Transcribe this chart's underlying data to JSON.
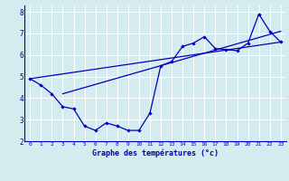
{
  "xlabel": "Graphe des températures (°c)",
  "bg_color": "#d4ecf0",
  "line_color": "#0000bb",
  "grid_color": "#ffffff",
  "xlim": [
    -0.5,
    23.5
  ],
  "ylim": [
    2,
    8.3
  ],
  "xticks": [
    0,
    1,
    2,
    3,
    4,
    5,
    6,
    7,
    8,
    9,
    10,
    11,
    12,
    13,
    14,
    15,
    16,
    17,
    18,
    19,
    20,
    21,
    22,
    23
  ],
  "yticks": [
    2,
    3,
    4,
    5,
    6,
    7,
    8
  ],
  "temp_line": [
    [
      0,
      4.9
    ],
    [
      1,
      4.6
    ],
    [
      2,
      4.2
    ],
    [
      3,
      3.6
    ],
    [
      4,
      3.5
    ],
    [
      5,
      2.7
    ],
    [
      6,
      2.5
    ],
    [
      7,
      2.85
    ],
    [
      8,
      2.7
    ],
    [
      9,
      2.5
    ],
    [
      10,
      2.5
    ],
    [
      11,
      3.3
    ],
    [
      12,
      5.5
    ],
    [
      13,
      5.7
    ],
    [
      14,
      6.4
    ],
    [
      15,
      6.55
    ],
    [
      16,
      6.85
    ],
    [
      17,
      6.3
    ],
    [
      18,
      6.25
    ],
    [
      19,
      6.2
    ],
    [
      20,
      6.55
    ],
    [
      21,
      7.9
    ],
    [
      22,
      7.1
    ],
    [
      23,
      6.6
    ]
  ],
  "trend_line1": [
    [
      0,
      4.9
    ],
    [
      23,
      6.6
    ]
  ],
  "trend_line2": [
    [
      3,
      4.2
    ],
    [
      23,
      7.1
    ]
  ]
}
